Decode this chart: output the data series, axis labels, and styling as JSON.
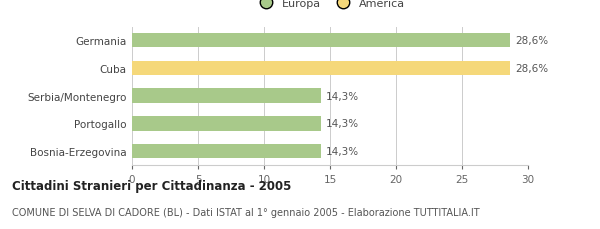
{
  "categories": [
    "Bosnia-Erzegovina",
    "Portogallo",
    "Serbia/Montenegro",
    "Cuba",
    "Germania"
  ],
  "values": [
    14.3,
    14.3,
    14.3,
    28.6,
    28.6
  ],
  "colors": [
    "#a8c98a",
    "#a8c98a",
    "#a8c98a",
    "#f5d87a",
    "#a8c98a"
  ],
  "labels": [
    "14,3%",
    "14,3%",
    "14,3%",
    "28,6%",
    "28,6%"
  ],
  "legend_entries": [
    {
      "label": "Europa",
      "color": "#a8c98a"
    },
    {
      "label": "America",
      "color": "#f5d87a"
    }
  ],
  "xlim": [
    0,
    30
  ],
  "xticks": [
    0,
    5,
    10,
    15,
    20,
    25,
    30
  ],
  "title": "Cittadini Stranieri per Cittadinanza - 2005",
  "subtitle": "COMUNE DI SELVA DI CADORE (BL) - Dati ISTAT al 1° gennaio 2005 - Elaborazione TUTTITALIA.IT",
  "title_fontsize": 8.5,
  "subtitle_fontsize": 7.0,
  "bar_height": 0.52,
  "background_color": "#ffffff",
  "grid_color": "#cccccc",
  "label_fontsize": 7.5,
  "tick_fontsize": 7.5,
  "category_fontsize": 7.5
}
